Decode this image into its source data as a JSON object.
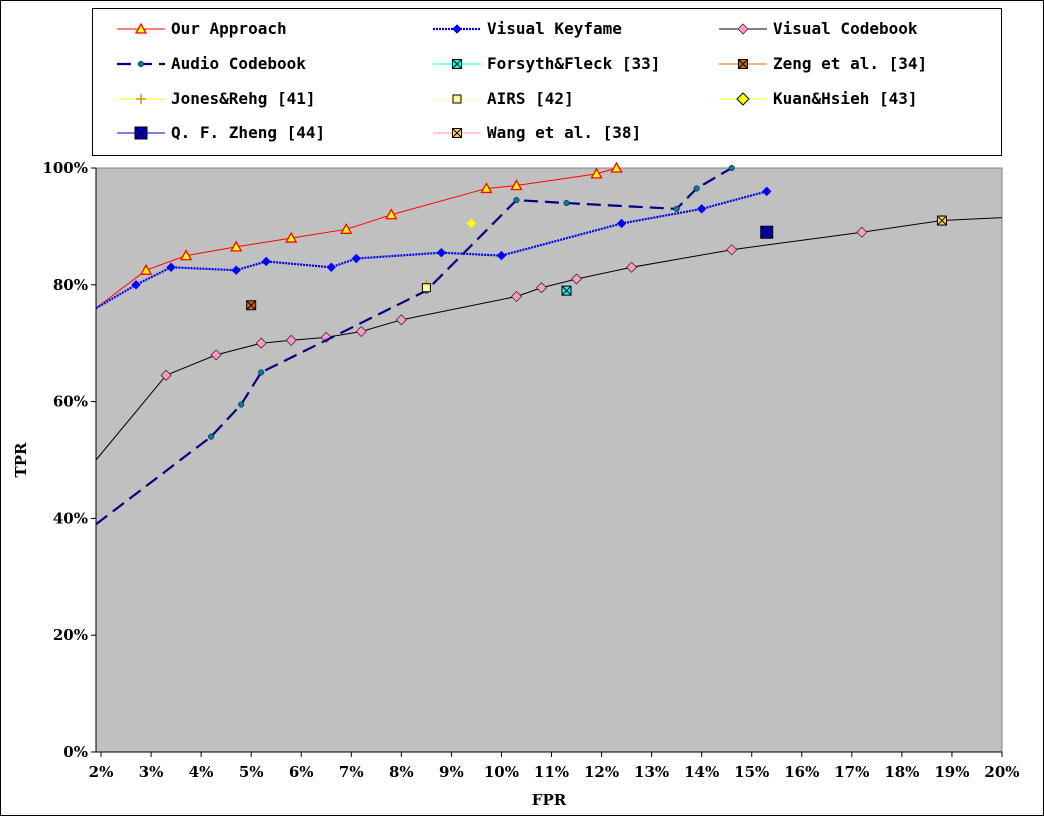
{
  "chart_data": {
    "type": "line",
    "xlabel": "FPR",
    "ylabel": "TPR",
    "xlim": [
      1.9,
      20
    ],
    "ylim": [
      0,
      100
    ],
    "x_ticks": [
      "2%",
      "3%",
      "4%",
      "5%",
      "6%",
      "7%",
      "8%",
      "9%",
      "10%",
      "11%",
      "12%",
      "13%",
      "14%",
      "15%",
      "16%",
      "17%",
      "18%",
      "19%",
      "20%"
    ],
    "y_ticks": [
      "0%",
      "20%",
      "40%",
      "60%",
      "80%",
      "100%"
    ],
    "plot_background": "#c0c0c0",
    "legend_position": "top",
    "series": [
      {
        "name": "Our Approach",
        "style": "line",
        "color": "#ff0000",
        "marker": "triangle",
        "points": [
          [
            1.9,
            76
          ],
          [
            2.9,
            82.5
          ],
          [
            3.7,
            85
          ],
          [
            4.7,
            86.5
          ],
          [
            5.8,
            88
          ],
          [
            6.9,
            89.5
          ],
          [
            7.8,
            92
          ],
          [
            9.7,
            96.5
          ],
          [
            10.3,
            97
          ],
          [
            11.9,
            99
          ],
          [
            12.3,
            100
          ]
        ]
      },
      {
        "name": "Visual Keyfame",
        "style": "wavy",
        "color": "#0000ff",
        "marker": "diamond",
        "points": [
          [
            1.9,
            76
          ],
          [
            2.7,
            80
          ],
          [
            3.4,
            83
          ],
          [
            4.7,
            82.5
          ],
          [
            5.3,
            84
          ],
          [
            6.6,
            83
          ],
          [
            7.1,
            84.5
          ],
          [
            8.8,
            85.5
          ],
          [
            10,
            85
          ],
          [
            12.4,
            90.5
          ],
          [
            14,
            93
          ],
          [
            15.3,
            96
          ]
        ]
      },
      {
        "name": "Visual Codebook",
        "style": "line",
        "color": "#000000",
        "marker": "diamond-pink",
        "points": [
          [
            1.9,
            50
          ],
          [
            3.3,
            64.5
          ],
          [
            4.3,
            68
          ],
          [
            5.2,
            70
          ],
          [
            5.8,
            70.5
          ],
          [
            6.5,
            71
          ],
          [
            7.2,
            72
          ],
          [
            8,
            74
          ],
          [
            10.3,
            78
          ],
          [
            10.8,
            79.5
          ],
          [
            11.5,
            81
          ],
          [
            12.6,
            83
          ],
          [
            14.6,
            86
          ],
          [
            17.2,
            89
          ],
          [
            18.8,
            91
          ],
          [
            20,
            91.5
          ]
        ]
      },
      {
        "name": "Audio Codebook",
        "style": "dashed",
        "color": "#000080",
        "marker": "dot-teal",
        "points": [
          [
            1.9,
            39
          ],
          [
            4.2,
            54
          ],
          [
            4.8,
            59.5
          ],
          [
            5.2,
            65
          ],
          [
            8.5,
            79
          ],
          [
            10.3,
            94.5
          ],
          [
            11.3,
            94
          ],
          [
            13.5,
            93
          ],
          [
            13.9,
            96.5
          ],
          [
            14.6,
            100
          ]
        ]
      },
      {
        "name": "Forsyth&Fleck [33]",
        "style": "point",
        "color": "#00ffff",
        "marker": "x-square",
        "points": [
          [
            11.3,
            79
          ]
        ]
      },
      {
        "name": "Zeng et al. [34]",
        "style": "point",
        "color": "#cc6600",
        "marker": "x-square",
        "points": [
          [
            5,
            76.5
          ]
        ]
      },
      {
        "name": "Jones&Rehg [41]",
        "style": "point",
        "color": "#ffff00",
        "marker": "star",
        "points": [
          [
            8.5,
            80
          ]
        ]
      },
      {
        "name": "AIRS [42]",
        "style": "point",
        "color": "#ffff99",
        "marker": "square",
        "points": [
          [
            8.5,
            79.5
          ]
        ]
      },
      {
        "name": "Kuan&Hsieh [43]",
        "style": "point",
        "color": "#ffff00",
        "marker": "diamond",
        "points": [
          [
            9.4,
            90.5
          ]
        ]
      },
      {
        "name": "Q. F. Zheng [44]",
        "style": "point",
        "color": "#0000cc",
        "marker": "x-square",
        "points": [
          [
            15.3,
            89
          ]
        ]
      },
      {
        "name": "Wang et al. [38]",
        "style": "point",
        "color": "#ffcc66",
        "marker": "x-square",
        "points": [
          [
            18.8,
            91
          ]
        ]
      }
    ]
  }
}
